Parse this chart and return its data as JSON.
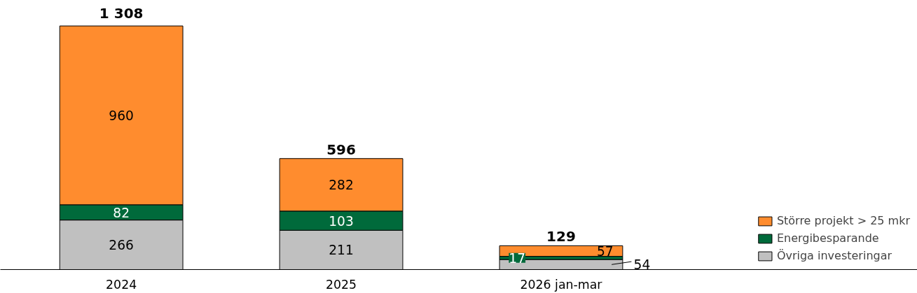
{
  "chart_data": {
    "type": "bar",
    "stacked": true,
    "categories": [
      "2024",
      "2025",
      "2026 jan-mar"
    ],
    "series": [
      {
        "name": "Övriga investeringar",
        "color": "#c0c0c0",
        "values": [
          266,
          211,
          54
        ]
      },
      {
        "name": "Energibesparande",
        "color": "#006a3b",
        "values": [
          82,
          103,
          17
        ]
      },
      {
        "name": "Större projekt > 25 mkr",
        "color": "#ff8c2e",
        "values": [
          960,
          282,
          57
        ]
      }
    ],
    "totals": [
      "1 308",
      "596",
      "129"
    ],
    "data_labels": true,
    "legend": "bottom right",
    "grid": false
  }
}
